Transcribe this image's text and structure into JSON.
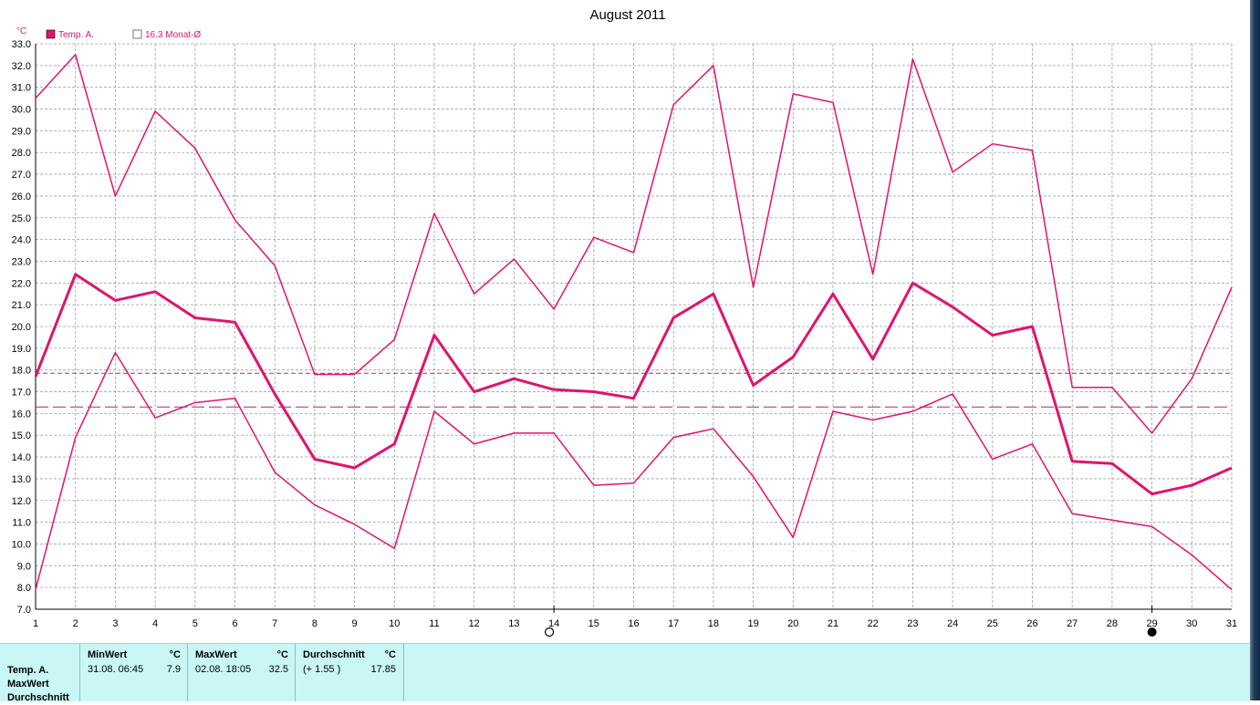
{
  "colors": {
    "series": "#e0136f",
    "avg_line": "#b0306f",
    "month_avg_line": "#c0205a",
    "grid": "#a0a0a0",
    "stats_bg": "#c8f7f5"
  },
  "chart_data": {
    "type": "line",
    "title": "August 2011",
    "unit_label": "°C",
    "x": [
      1,
      2,
      3,
      4,
      5,
      6,
      7,
      8,
      9,
      10,
      11,
      12,
      13,
      14,
      15,
      16,
      17,
      18,
      19,
      20,
      21,
      22,
      23,
      24,
      25,
      26,
      27,
      28,
      29,
      30,
      31
    ],
    "ylim": [
      7.0,
      33.0
    ],
    "ytick_step": 1.0,
    "grid": true,
    "legend_position": "top-left",
    "legend": [
      {
        "label": "Temp. A.",
        "swatch": "filled"
      },
      {
        "label": "16.3 Monat-Ø",
        "swatch": "empty"
      }
    ],
    "series": [
      {
        "role": "max",
        "width": 1.5,
        "values": [
          30.5,
          32.5,
          26.0,
          29.9,
          28.2,
          24.9,
          22.8,
          17.8,
          17.8,
          19.4,
          25.2,
          21.5,
          23.1,
          20.8,
          24.1,
          23.4,
          30.2,
          32.0,
          21.8,
          30.7,
          30.3,
          22.4,
          32.3,
          27.1,
          28.4,
          28.1,
          17.2,
          17.2,
          15.1,
          17.6,
          21.8
        ]
      },
      {
        "role": "mean",
        "width": 3,
        "values": [
          17.7,
          22.4,
          21.2,
          21.6,
          20.4,
          20.2,
          16.9,
          13.9,
          13.5,
          14.6,
          19.6,
          17.0,
          17.6,
          17.1,
          17.0,
          16.7,
          20.4,
          21.5,
          17.3,
          18.6,
          21.5,
          18.5,
          22.0,
          20.9,
          19.6,
          20.0,
          13.8,
          13.7,
          12.3,
          12.7,
          13.5
        ]
      },
      {
        "role": "min",
        "width": 1.5,
        "values": [
          7.9,
          14.9,
          18.8,
          15.8,
          16.5,
          16.7,
          13.3,
          11.8,
          10.9,
          9.8,
          16.1,
          14.6,
          15.1,
          15.1,
          12.7,
          12.8,
          14.9,
          15.3,
          13.1,
          10.3,
          16.1,
          15.7,
          16.1,
          16.9,
          13.9,
          14.6,
          11.4,
          11.1,
          10.8,
          9.5,
          7.9
        ]
      }
    ],
    "reference_lines": [
      {
        "value": 17.85,
        "style": "short-dash",
        "meaning": "period average"
      },
      {
        "value": 16.3,
        "style": "long-dash",
        "meaning": "Monat-Ø"
      }
    ],
    "moon_markers": [
      {
        "day": 14,
        "phase": "full-moon"
      },
      {
        "day": 29,
        "phase": "new-moon"
      }
    ]
  },
  "stats": {
    "row_labels": [
      "Temp. A.",
      "MaxWert",
      "Durchschnitt"
    ],
    "min": {
      "header": "MinWert",
      "unit": "°C",
      "datetime": "31.08.  06:45",
      "value": "7.9"
    },
    "max": {
      "header": "MaxWert",
      "unit": "°C",
      "datetime": "02.08.  18:05",
      "value": "32.5"
    },
    "avg": {
      "header": "Durchschnitt",
      "unit": "°C",
      "delta": "(+ 1.55 )",
      "value": "17.85"
    }
  }
}
